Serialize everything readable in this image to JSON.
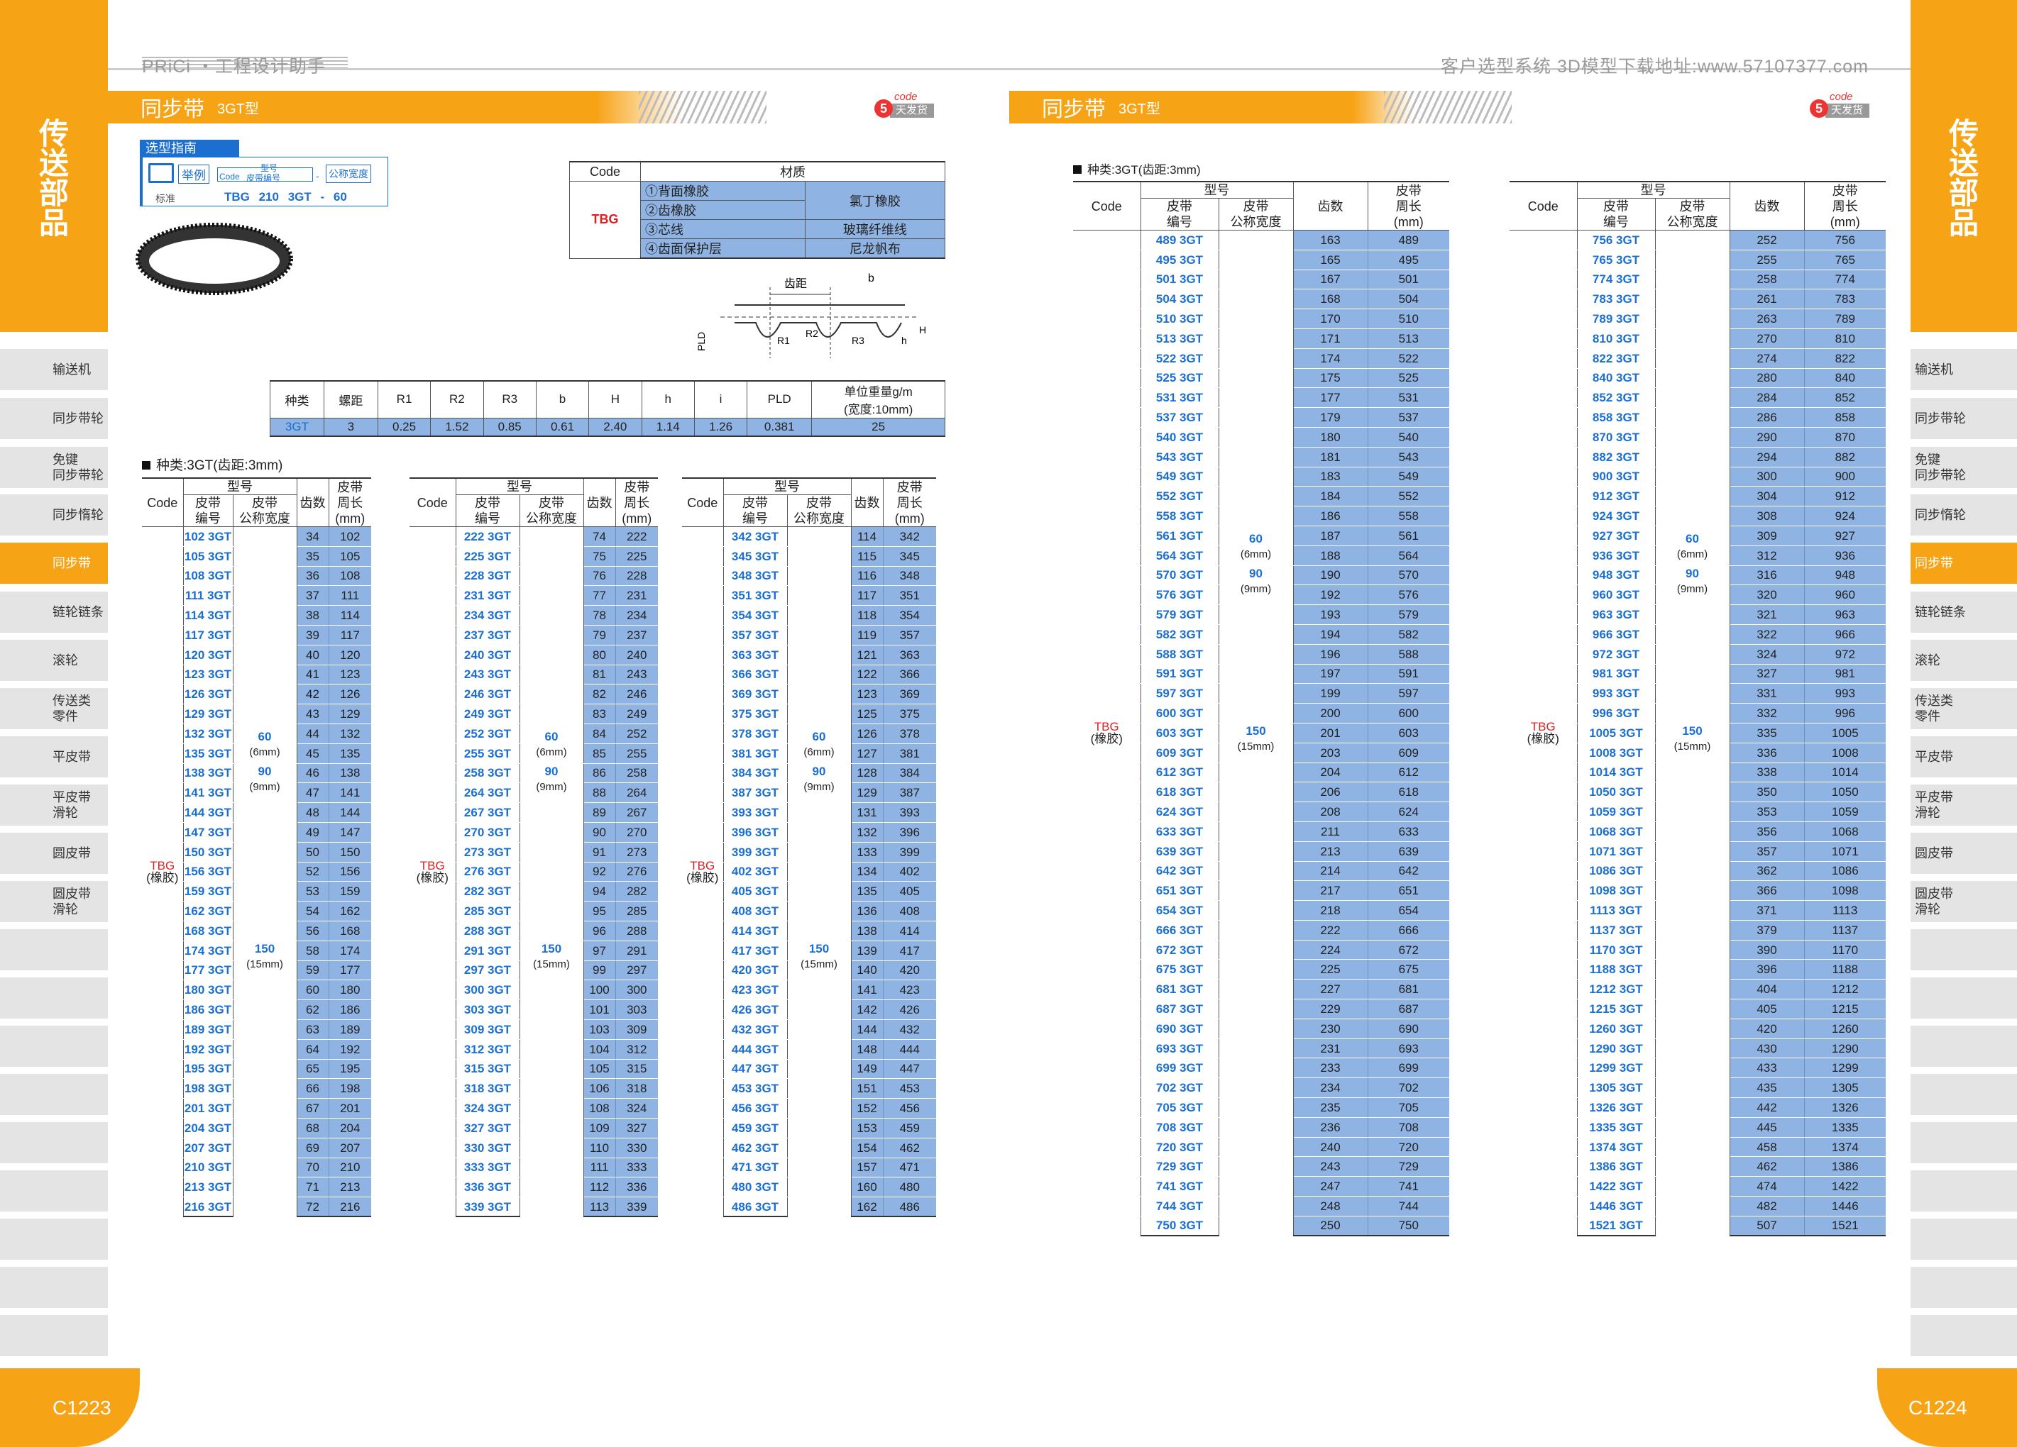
{
  "header": {
    "left": "PRiCi ・工程设计助手",
    "right": "客户选型系统 3D模型下载地址:www.57107377.com"
  },
  "side": {
    "title": [
      "传",
      "送",
      "部",
      "品"
    ],
    "items": [
      "输送机",
      "同步带轮",
      "免键\n同步带轮",
      "同步惰轮",
      "同步带",
      "链轮链条",
      "滚轮",
      "传送类\n零件",
      "平皮带",
      "平皮带\n滑轮",
      "圆皮带",
      "圆皮带\n滑轮"
    ],
    "active_index": 4
  },
  "page_left": "C1223",
  "page_right": "C1224",
  "title": {
    "main": "同步带",
    "sub": "3GT型"
  },
  "logo": {
    "num": "5",
    "code": "code",
    "tag": "天发货"
  },
  "guide": {
    "header": "选型指南",
    "example": "举例",
    "type_label": "型号",
    "code_label": "Code",
    "pn_label": "皮带编号",
    "width_label": "公称宽度",
    "std": "标准",
    "std_val": "TBG 210 3GT - 60"
  },
  "material": {
    "headers": [
      "Code",
      "材质"
    ],
    "code": "TBG",
    "rows": [
      [
        "①背面橡胶",
        "氯丁橡胶"
      ],
      [
        "②齿橡胶",
        ""
      ],
      [
        "③芯线",
        "玻璃纤维线"
      ],
      [
        "④齿面保护层",
        "尼龙帆布"
      ]
    ]
  },
  "diagram": {
    "pitch": "齿距",
    "b": "b",
    "r1": "R1",
    "r2": "R2",
    "r3": "R3",
    "pld": "PLD",
    "h": "h",
    "H": "H"
  },
  "params": {
    "headers": [
      "种类",
      "螺距",
      "R1",
      "R2",
      "R3",
      "b",
      "H",
      "h",
      "i",
      "PLD",
      "单位重量g/m\n(宽度:10mm)"
    ],
    "row": [
      "3GT",
      "3",
      "0.25",
      "1.52",
      "0.85",
      "0.61",
      "2.40",
      "1.14",
      "1.26",
      "0.381",
      "25"
    ]
  },
  "section": "种类:3GT(齿距:3mm)",
  "section2": "种类:3GT(齿距:3mm)",
  "th": {
    "type": "型号",
    "code": "Code",
    "pn": "皮带\n编号",
    "width": "皮带\n公称宽度",
    "teeth": "齿数",
    "len": "皮带\n周长\n(mm)"
  },
  "code_cell": {
    "code": "TBG",
    "mat": "(橡胶)"
  },
  "widths": [
    {
      "w": "60",
      "m": "(6mm)"
    },
    {
      "w": "90",
      "m": "(9mm)"
    },
    {
      "w": "150",
      "m": "(15mm)"
    }
  ],
  "tables": [
    {
      "rows": [
        [
          "102 3GT",
          34,
          102
        ],
        [
          "105 3GT",
          35,
          105
        ],
        [
          "108 3GT",
          36,
          108
        ],
        [
          "111 3GT",
          37,
          111
        ],
        [
          "114 3GT",
          38,
          114
        ],
        [
          "117 3GT",
          39,
          117
        ],
        [
          "120 3GT",
          40,
          120
        ],
        [
          "123 3GT",
          41,
          123
        ],
        [
          "126 3GT",
          42,
          126
        ],
        [
          "129 3GT",
          43,
          129
        ],
        [
          "132 3GT",
          44,
          132
        ],
        [
          "135 3GT",
          45,
          135
        ],
        [
          "138 3GT",
          46,
          138
        ],
        [
          "141 3GT",
          47,
          141
        ],
        [
          "144 3GT",
          48,
          144
        ],
        [
          "147 3GT",
          49,
          147
        ],
        [
          "150 3GT",
          50,
          150
        ],
        [
          "156 3GT",
          52,
          156
        ],
        [
          "159 3GT",
          53,
          159
        ],
        [
          "162 3GT",
          54,
          162
        ],
        [
          "168 3GT",
          56,
          168
        ],
        [
          "174 3GT",
          58,
          174
        ],
        [
          "177 3GT",
          59,
          177
        ],
        [
          "180 3GT",
          60,
          180
        ],
        [
          "186 3GT",
          62,
          186
        ],
        [
          "189 3GT",
          63,
          189
        ],
        [
          "192 3GT",
          64,
          192
        ],
        [
          "195 3GT",
          65,
          195
        ],
        [
          "198 3GT",
          66,
          198
        ],
        [
          "201 3GT",
          67,
          201
        ],
        [
          "204 3GT",
          68,
          204
        ],
        [
          "207 3GT",
          69,
          207
        ],
        [
          "210 3GT",
          70,
          210
        ],
        [
          "213 3GT",
          71,
          213
        ],
        [
          "216 3GT",
          72,
          216
        ]
      ]
    },
    {
      "rows": [
        [
          "222 3GT",
          74,
          222
        ],
        [
          "225 3GT",
          75,
          225
        ],
        [
          "228 3GT",
          76,
          228
        ],
        [
          "231 3GT",
          77,
          231
        ],
        [
          "234 3GT",
          78,
          234
        ],
        [
          "237 3GT",
          79,
          237
        ],
        [
          "240 3GT",
          80,
          240
        ],
        [
          "243 3GT",
          81,
          243
        ],
        [
          "246 3GT",
          82,
          246
        ],
        [
          "249 3GT",
          83,
          249
        ],
        [
          "252 3GT",
          84,
          252
        ],
        [
          "255 3GT",
          85,
          255
        ],
        [
          "258 3GT",
          86,
          258
        ],
        [
          "264 3GT",
          88,
          264
        ],
        [
          "267 3GT",
          89,
          267
        ],
        [
          "270 3GT",
          90,
          270
        ],
        [
          "273 3GT",
          91,
          273
        ],
        [
          "276 3GT",
          92,
          276
        ],
        [
          "282 3GT",
          94,
          282
        ],
        [
          "285 3GT",
          95,
          285
        ],
        [
          "288 3GT",
          96,
          288
        ],
        [
          "291 3GT",
          97,
          291
        ],
        [
          "297 3GT",
          99,
          297
        ],
        [
          "300 3GT",
          100,
          300
        ],
        [
          "303 3GT",
          101,
          303
        ],
        [
          "309 3GT",
          103,
          309
        ],
        [
          "312 3GT",
          104,
          312
        ],
        [
          "315 3GT",
          105,
          315
        ],
        [
          "318 3GT",
          106,
          318
        ],
        [
          "324 3GT",
          108,
          324
        ],
        [
          "327 3GT",
          109,
          327
        ],
        [
          "330 3GT",
          110,
          330
        ],
        [
          "333 3GT",
          111,
          333
        ],
        [
          "336 3GT",
          112,
          336
        ],
        [
          "339 3GT",
          113,
          339
        ]
      ]
    },
    {
      "rows": [
        [
          "342 3GT",
          114,
          342
        ],
        [
          "345 3GT",
          115,
          345
        ],
        [
          "348 3GT",
          116,
          348
        ],
        [
          "351 3GT",
          117,
          351
        ],
        [
          "354 3GT",
          118,
          354
        ],
        [
          "357 3GT",
          119,
          357
        ],
        [
          "363 3GT",
          121,
          363
        ],
        [
          "366 3GT",
          122,
          366
        ],
        [
          "369 3GT",
          123,
          369
        ],
        [
          "375 3GT",
          125,
          375
        ],
        [
          "378 3GT",
          126,
          378
        ],
        [
          "381 3GT",
          127,
          381
        ],
        [
          "384 3GT",
          128,
          384
        ],
        [
          "387 3GT",
          129,
          387
        ],
        [
          "393 3GT",
          131,
          393
        ],
        [
          "396 3GT",
          132,
          396
        ],
        [
          "399 3GT",
          133,
          399
        ],
        [
          "402 3GT",
          134,
          402
        ],
        [
          "405 3GT",
          135,
          405
        ],
        [
          "408 3GT",
          136,
          408
        ],
        [
          "414 3GT",
          138,
          414
        ],
        [
          "417 3GT",
          139,
          417
        ],
        [
          "420 3GT",
          140,
          420
        ],
        [
          "423 3GT",
          141,
          423
        ],
        [
          "426 3GT",
          142,
          426
        ],
        [
          "432 3GT",
          144,
          432
        ],
        [
          "444 3GT",
          148,
          444
        ],
        [
          "447 3GT",
          149,
          447
        ],
        [
          "453 3GT",
          151,
          453
        ],
        [
          "456 3GT",
          152,
          456
        ],
        [
          "459 3GT",
          153,
          459
        ],
        [
          "462 3GT",
          154,
          462
        ],
        [
          "471 3GT",
          157,
          471
        ],
        [
          "480 3GT",
          160,
          480
        ],
        [
          "486 3GT",
          162,
          486
        ]
      ]
    },
    {
      "rows": [
        [
          "489 3GT",
          163,
          489
        ],
        [
          "495 3GT",
          165,
          495
        ],
        [
          "501 3GT",
          167,
          501
        ],
        [
          "504 3GT",
          168,
          504
        ],
        [
          "510 3GT",
          170,
          510
        ],
        [
          "513 3GT",
          171,
          513
        ],
        [
          "522 3GT",
          174,
          522
        ],
        [
          "525 3GT",
          175,
          525
        ],
        [
          "531 3GT",
          177,
          531
        ],
        [
          "537 3GT",
          179,
          537
        ],
        [
          "540 3GT",
          180,
          540
        ],
        [
          "543 3GT",
          181,
          543
        ],
        [
          "549 3GT",
          183,
          549
        ],
        [
          "552 3GT",
          184,
          552
        ],
        [
          "558 3GT",
          186,
          558
        ],
        [
          "561 3GT",
          187,
          561
        ],
        [
          "564 3GT",
          188,
          564
        ],
        [
          "570 3GT",
          190,
          570
        ],
        [
          "576 3GT",
          192,
          576
        ],
        [
          "579 3GT",
          193,
          579
        ],
        [
          "582 3GT",
          194,
          582
        ],
        [
          "588 3GT",
          196,
          588
        ],
        [
          "591 3GT",
          197,
          591
        ],
        [
          "597 3GT",
          199,
          597
        ],
        [
          "600 3GT",
          200,
          600
        ],
        [
          "603 3GT",
          201,
          603
        ],
        [
          "609 3GT",
          203,
          609
        ],
        [
          "612 3GT",
          204,
          612
        ],
        [
          "618 3GT",
          206,
          618
        ],
        [
          "624 3GT",
          208,
          624
        ],
        [
          "633 3GT",
          211,
          633
        ],
        [
          "639 3GT",
          213,
          639
        ],
        [
          "642 3GT",
          214,
          642
        ],
        [
          "651 3GT",
          217,
          651
        ],
        [
          "654 3GT",
          218,
          654
        ],
        [
          "666 3GT",
          222,
          666
        ],
        [
          "672 3GT",
          224,
          672
        ],
        [
          "675 3GT",
          225,
          675
        ],
        [
          "681 3GT",
          227,
          681
        ],
        [
          "687 3GT",
          229,
          687
        ],
        [
          "690 3GT",
          230,
          690
        ],
        [
          "693 3GT",
          231,
          693
        ],
        [
          "699 3GT",
          233,
          699
        ],
        [
          "702 3GT",
          234,
          702
        ],
        [
          "705 3GT",
          235,
          705
        ],
        [
          "708 3GT",
          236,
          708
        ],
        [
          "720 3GT",
          240,
          720
        ],
        [
          "729 3GT",
          243,
          729
        ],
        [
          "741 3GT",
          247,
          741
        ],
        [
          "744 3GT",
          248,
          744
        ],
        [
          "750 3GT",
          250,
          750
        ]
      ]
    },
    {
      "rows": [
        [
          "756 3GT",
          252,
          756
        ],
        [
          "765 3GT",
          255,
          765
        ],
        [
          "774 3GT",
          258,
          774
        ],
        [
          "783 3GT",
          261,
          783
        ],
        [
          "789 3GT",
          263,
          789
        ],
        [
          "810 3GT",
          270,
          810
        ],
        [
          "822 3GT",
          274,
          822
        ],
        [
          "840 3GT",
          280,
          840
        ],
        [
          "852 3GT",
          284,
          852
        ],
        [
          "858 3GT",
          286,
          858
        ],
        [
          "870 3GT",
          290,
          870
        ],
        [
          "882 3GT",
          294,
          882
        ],
        [
          "900 3GT",
          300,
          900
        ],
        [
          "912 3GT",
          304,
          912
        ],
        [
          "924 3GT",
          308,
          924
        ],
        [
          "927 3GT",
          309,
          927
        ],
        [
          "936 3GT",
          312,
          936
        ],
        [
          "948 3GT",
          316,
          948
        ],
        [
          "960 3GT",
          320,
          960
        ],
        [
          "963 3GT",
          321,
          963
        ],
        [
          "966 3GT",
          322,
          966
        ],
        [
          "972 3GT",
          324,
          972
        ],
        [
          "981 3GT",
          327,
          981
        ],
        [
          "993 3GT",
          331,
          993
        ],
        [
          "996 3GT",
          332,
          996
        ],
        [
          "1005 3GT",
          335,
          1005
        ],
        [
          "1008 3GT",
          336,
          1008
        ],
        [
          "1014 3GT",
          338,
          1014
        ],
        [
          "1050 3GT",
          350,
          1050
        ],
        [
          "1059 3GT",
          353,
          1059
        ],
        [
          "1068 3GT",
          356,
          1068
        ],
        [
          "1071 3GT",
          357,
          1071
        ],
        [
          "1086 3GT",
          362,
          1086
        ],
        [
          "1098 3GT",
          366,
          1098
        ],
        [
          "1113 3GT",
          371,
          1113
        ],
        [
          "1137 3GT",
          379,
          1137
        ],
        [
          "1170 3GT",
          390,
          1170
        ],
        [
          "1188 3GT",
          396,
          1188
        ],
        [
          "1212 3GT",
          404,
          1212
        ],
        [
          "1215 3GT",
          405,
          1215
        ],
        [
          "1260 3GT",
          420,
          1260
        ],
        [
          "1290 3GT",
          430,
          1290
        ],
        [
          "1299 3GT",
          433,
          1299
        ],
        [
          "1305 3GT",
          435,
          1305
        ],
        [
          "1326 3GT",
          442,
          1326
        ],
        [
          "1335 3GT",
          445,
          1335
        ],
        [
          "1374 3GT",
          458,
          1374
        ],
        [
          "1386 3GT",
          462,
          1386
        ],
        [
          "1422 3GT",
          474,
          1422
        ],
        [
          "1446 3GT",
          482,
          1446
        ],
        [
          "1521 3GT",
          507,
          1521
        ]
      ]
    }
  ]
}
